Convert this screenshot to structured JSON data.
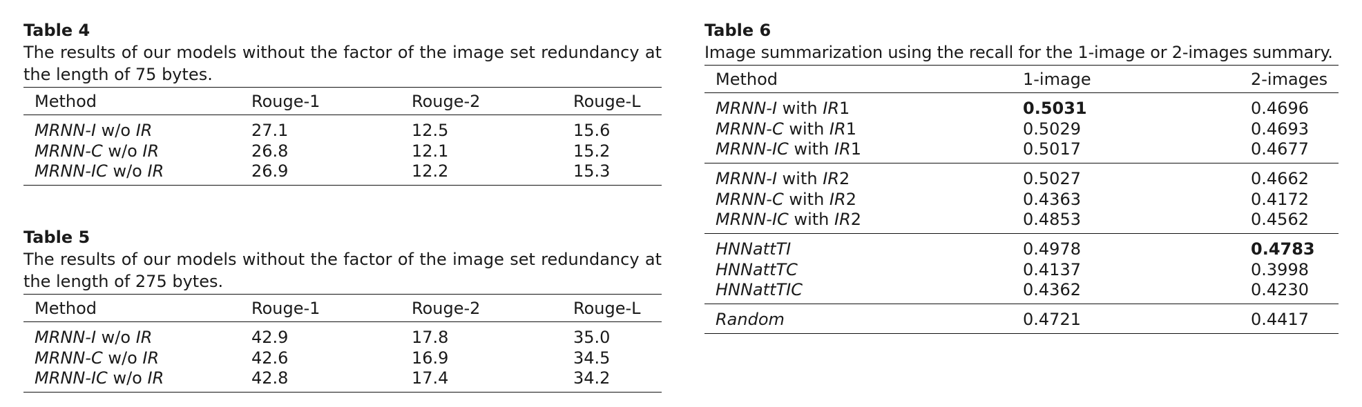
{
  "table4": {
    "label": "Table 4",
    "caption": "The results of our models without the factor of the image set redundancy at the length of 75 bytes.",
    "columns": [
      "Method",
      "Rouge-1",
      "Rouge-2",
      "Rouge-L"
    ],
    "rows": [
      {
        "model": "MRNN-I",
        "suffix": "w/o",
        "factor": "IR",
        "values": [
          "27.1",
          "12.5",
          "15.6"
        ]
      },
      {
        "model": "MRNN-C",
        "suffix": "w/o",
        "factor": "IR",
        "values": [
          "26.8",
          "12.1",
          "15.2"
        ]
      },
      {
        "model": "MRNN-IC",
        "suffix": "w/o",
        "factor": "IR",
        "values": [
          "26.9",
          "12.2",
          "15.3"
        ]
      }
    ]
  },
  "table5": {
    "label": "Table 5",
    "caption": "The results of our models without the factor of the image set redundancy at the length of 275 bytes.",
    "columns": [
      "Method",
      "Rouge-1",
      "Rouge-2",
      "Rouge-L"
    ],
    "rows": [
      {
        "model": "MRNN-I",
        "suffix": "w/o",
        "factor": "IR",
        "values": [
          "42.9",
          "17.8",
          "35.0"
        ]
      },
      {
        "model": "MRNN-C",
        "suffix": "w/o",
        "factor": "IR",
        "values": [
          "42.6",
          "16.9",
          "34.5"
        ]
      },
      {
        "model": "MRNN-IC",
        "suffix": "w/o",
        "factor": "IR",
        "values": [
          "42.8",
          "17.4",
          "34.2"
        ]
      }
    ]
  },
  "table6": {
    "label": "Table 6",
    "caption": "Image summarization using the recall for the 1-image or 2-images summary.",
    "columns": [
      "Method",
      "1-image",
      "2-images"
    ],
    "groups": [
      [
        {
          "model": "MRNN-I",
          "suffix": "with",
          "factor": "IR",
          "index": "1",
          "values": [
            "0.5031",
            "0.4696"
          ]
        },
        {
          "model": "MRNN-C",
          "suffix": "with",
          "factor": "IR",
          "index": "1",
          "values": [
            "0.5029",
            "0.4693"
          ]
        },
        {
          "model": "MRNN-IC",
          "suffix": "with",
          "factor": "IR",
          "index": "1",
          "values": [
            "0.5017",
            "0.4677"
          ]
        }
      ],
      [
        {
          "model": "MRNN-I",
          "suffix": "with",
          "factor": "IR",
          "index": "2",
          "values": [
            "0.5027",
            "0.4662"
          ]
        },
        {
          "model": "MRNN-C",
          "suffix": "with",
          "factor": "IR",
          "index": "2",
          "values": [
            "0.4363",
            "0.4172"
          ]
        },
        {
          "model": "MRNN-IC",
          "suffix": "with",
          "factor": "IR",
          "index": "2",
          "values": [
            "0.4853",
            "0.4562"
          ]
        }
      ],
      [
        {
          "model": "HNNattTI",
          "values": [
            "0.4978",
            "0.4783"
          ]
        },
        {
          "model": "HNNattTC",
          "values": [
            "0.4137",
            "0.3998"
          ]
        },
        {
          "model": "HNNattTIC",
          "values": [
            "0.4362",
            "0.4230"
          ]
        }
      ],
      [
        {
          "model": "Random",
          "values": [
            "0.4721",
            "0.4417"
          ]
        }
      ]
    ],
    "best": {
      "1-image": "0.5031",
      "2-images": "0.4783"
    }
  }
}
